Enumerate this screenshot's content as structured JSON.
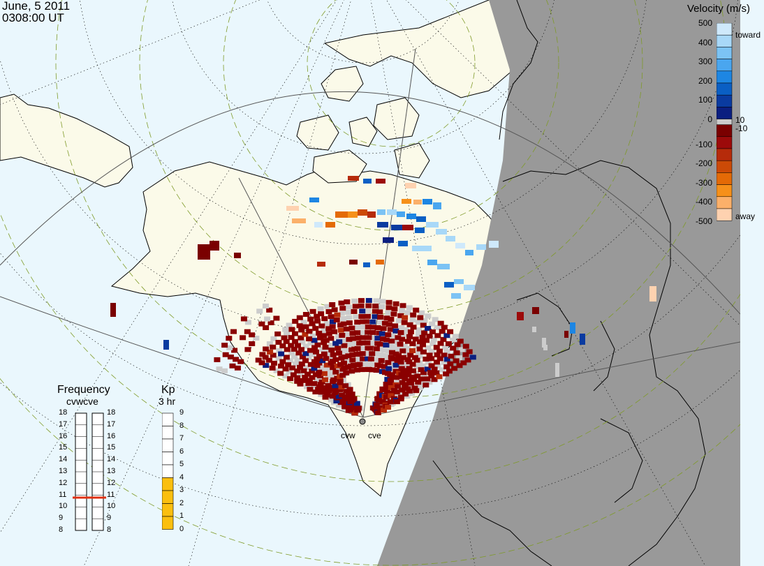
{
  "header": {
    "date": "June, 5 2011",
    "time": "0308:00 UT"
  },
  "colorbar": {
    "title": "Velocity (m/s)",
    "ticks": [
      "500",
      "400",
      "300",
      "200",
      "100",
      "0",
      "-100",
      "-200",
      "-300",
      "-400",
      "-500"
    ],
    "toward_label": "toward",
    "away_label": "away",
    "gap_pos_label": "10",
    "gap_neg_label": "-10",
    "colors": [
      "#cfe9fb",
      "#a8d8f8",
      "#7cc3f4",
      "#4aa6ef",
      "#1d86e3",
      "#0a5fc4",
      "#0a3ba0",
      "#0b1f80",
      "#7a0000",
      "#9c0a0a",
      "#b62b0a",
      "#cc4a06",
      "#e46a06",
      "#f6901a",
      "#fbb06a",
      "#fed2b0"
    ]
  },
  "radars": {
    "west": "cvw",
    "east": "cve"
  },
  "frequency_gauge": {
    "title": "Frequency",
    "subtitle": "cvwcve",
    "scale": [
      "18",
      "17",
      "16",
      "15",
      "14",
      "13",
      "12",
      "11",
      "10",
      "9",
      "8"
    ],
    "cvw_mhz": 10.8,
    "cve_mhz": 10.8
  },
  "kp_gauge": {
    "title": "Kp",
    "subtitle": "3 hr",
    "scale": [
      "9",
      "8",
      "7",
      "6",
      "5",
      "4",
      "3",
      "2",
      "1",
      "0"
    ],
    "value": 4
  },
  "colors": {
    "ocean": "#eaf7fd",
    "land": "#fbfae9",
    "night": "#999999",
    "ground_scatter": "#cccccc",
    "frequency_marker": "#e03010",
    "kp_fill": "#fbbf0f"
  }
}
